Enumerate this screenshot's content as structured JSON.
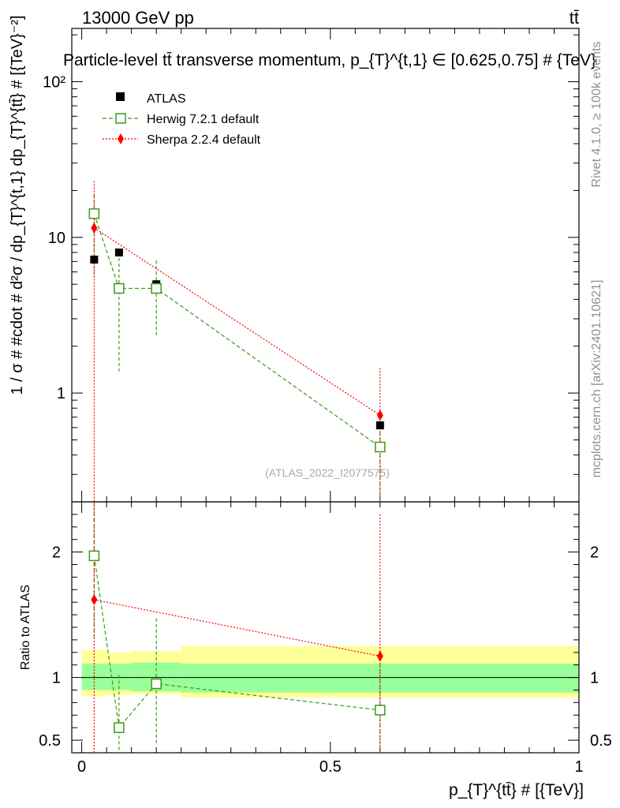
{
  "header": {
    "left_label": "13000 GeV pp",
    "right_label": "tt̄"
  },
  "side_labels": {
    "rivet": "Rivet 4.1.0, ≥ 100k events",
    "mcplots": "mcplots.cern.ch [arXiv:2401.10621]"
  },
  "watermark": "(ATLAS_2022_I2077575)",
  "legend": {
    "atlas": "ATLAS",
    "herwig": "Herwig 7.2.1 default",
    "sherpa": "Sherpa 2.2.4 default"
  },
  "colors": {
    "atlas": "#000000",
    "herwig": "#3a9a1a",
    "sherpa": "#ff0000",
    "band_inner": "#99ff99",
    "band_outer": "#ffff99"
  },
  "chart_data": [
    {
      "type": "scatter",
      "panel": "main",
      "title": "Particle-level tt̄ transverse momentum, p_{T}^{t,1} ∈ [0.625,0.75] # {TeV}",
      "ylabel": "1 / σ # #cdot # d²σ / dp_{T}^{t,1} dp_{T}^{tt̄} # [{TeV}⁻²]",
      "yscale": "log",
      "ylim": [
        0.2,
        220
      ],
      "xlim": [
        -0.02,
        1.0
      ],
      "ytick_labels": [
        "1",
        "10",
        "10²"
      ],
      "ytick_values": [
        1,
        10,
        100
      ],
      "series": [
        {
          "name": "ATLAS",
          "x": [
            0.025,
            0.075,
            0.15,
            0.6
          ],
          "y": [
            7.2,
            8.0,
            5.0,
            0.62
          ]
        },
        {
          "name": "Herwig 7.2.1 default",
          "x": [
            0.025,
            0.075,
            0.15,
            0.6
          ],
          "y": [
            14.2,
            4.7,
            4.7,
            0.45
          ],
          "yerr_low": [
            5.5,
            1.38,
            2.35,
            0.18
          ],
          "yerr_high": [
            19.0,
            8.0,
            7.1,
            0.72
          ]
        },
        {
          "name": "Sherpa 2.2.4 default",
          "x": [
            0.025,
            0.6
          ],
          "y": [
            11.5,
            0.72
          ],
          "yerr_low": [
            0.18,
            0.18
          ],
          "yerr_high": [
            23.0,
            1.45
          ]
        }
      ]
    },
    {
      "type": "scatter",
      "panel": "ratio",
      "ylabel": "Ratio to ATLAS",
      "xlabel": "p_{T}^{tt̄} # [{TeV}]",
      "ylim": [
        0.4,
        2.4
      ],
      "xlim": [
        -0.02,
        1.0
      ],
      "ytick_labels": [
        "0.5",
        "1",
        "2"
      ],
      "ytick_values": [
        0.5,
        1,
        2
      ],
      "xtick_labels": [
        "0",
        "0.5",
        "1"
      ],
      "xtick_values": [
        0,
        0.5,
        1
      ],
      "bins": [
        [
          0.0,
          0.05
        ],
        [
          0.05,
          0.1
        ],
        [
          0.1,
          0.2
        ],
        [
          0.2,
          1.0
        ]
      ],
      "band_inner": [
        [
          0.9,
          1.11
        ],
        [
          0.9,
          1.11
        ],
        [
          0.89,
          1.12
        ],
        [
          0.88,
          1.11
        ]
      ],
      "band_outer": [
        [
          0.85,
          1.22
        ],
        [
          0.86,
          1.2
        ],
        [
          0.87,
          1.21
        ],
        [
          0.84,
          1.25
        ]
      ],
      "series": [
        {
          "name": "Herwig 7.2.1 default",
          "x": [
            0.025,
            0.075,
            0.15,
            0.6
          ],
          "y": [
            1.97,
            0.6,
            0.95,
            0.74
          ],
          "yerr_low": [
            1.3,
            0.3,
            0.47,
            0.3
          ],
          "yerr_high": [
            2.4,
            1.02,
            1.47,
            1.2
          ]
        },
        {
          "name": "Sherpa 2.2.4 default",
          "x": [
            0.025,
            0.6
          ],
          "y": [
            1.62,
            1.17
          ],
          "yerr_low": [
            0.3,
            0.3
          ],
          "yerr_high": [
            2.4,
            2.3
          ]
        }
      ]
    }
  ]
}
